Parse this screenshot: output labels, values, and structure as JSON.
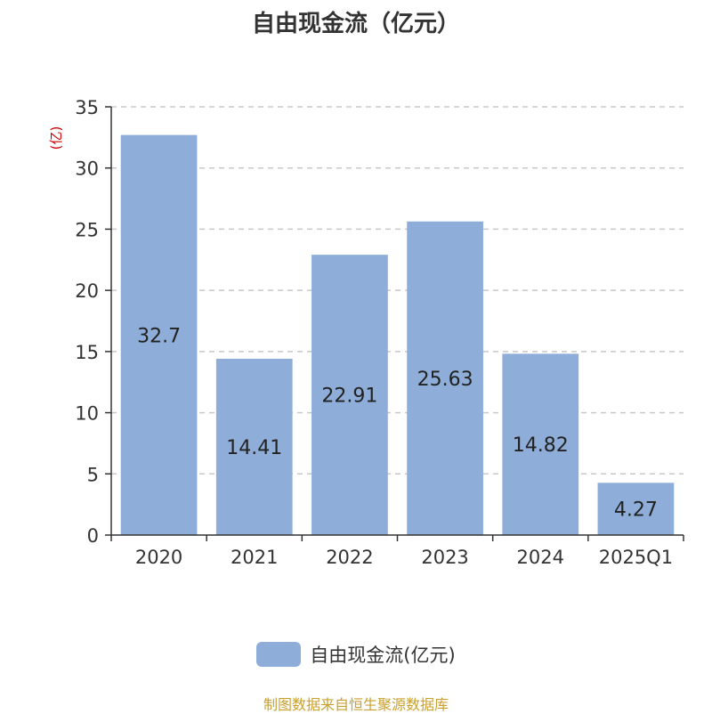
{
  "title": "自由现金流（亿元）",
  "legend": {
    "label": "自由现金流(亿元)"
  },
  "source": "制图数据来自恒生聚源数据库",
  "colors": {
    "bar": "#8eaed9",
    "unit": "#cc0000",
    "source": "#c8a030",
    "axis": "#333333",
    "grid": "#c8c8c8"
  },
  "chart_data": {
    "type": "bar",
    "title": "自由现金流（亿元）",
    "ylabel": "(亿)",
    "categories": [
      "2020",
      "2021",
      "2022",
      "2023",
      "2024",
      "2025Q1"
    ],
    "series": [
      {
        "name": "自由现金流(亿元)",
        "values": [
          32.7,
          14.41,
          22.91,
          25.63,
          14.82,
          4.27
        ]
      }
    ],
    "data_labels": [
      "32.7",
      "14.41",
      "22.91",
      "25.63",
      "14.82",
      "4.27"
    ],
    "ylim": [
      0,
      35
    ],
    "yticks": [
      0,
      5,
      10,
      15,
      20,
      25,
      30,
      35
    ],
    "grid": true,
    "legend_position": "bottom"
  }
}
